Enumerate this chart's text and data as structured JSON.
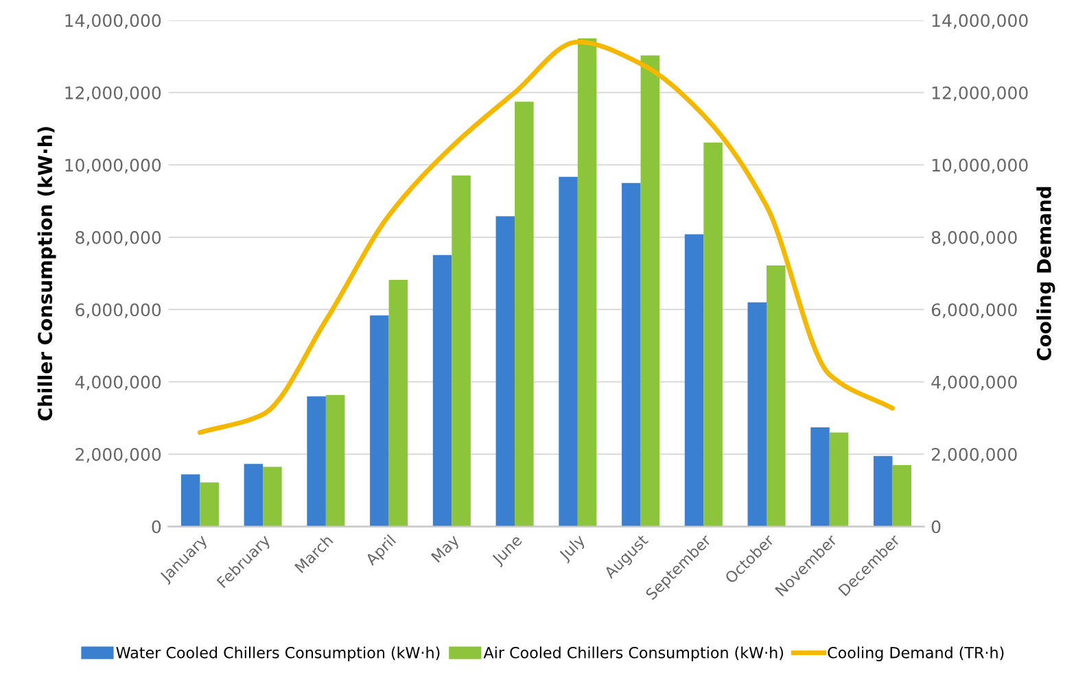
{
  "chart_data": {
    "type": "bar",
    "ylabel": "Chiller Consumption (kW·h)",
    "y2label": "Cooling Demand",
    "categories": [
      "January",
      "February",
      "March",
      "April",
      "May",
      "June",
      "July",
      "August",
      "September",
      "October",
      "November",
      "December"
    ],
    "series": [
      {
        "name": "Water Cooled Chillers Consumption (kW·h)",
        "color": "#3a7fd0",
        "values": [
          1440000,
          1730000,
          3600000,
          5840000,
          7510000,
          8580000,
          9670000,
          9500000,
          8080000,
          6200000,
          2740000,
          1950000
        ]
      },
      {
        "name": "Air Cooled Chillers Consumption (kW·h)",
        "color": "#8cc43c",
        "values": [
          1220000,
          1650000,
          3640000,
          6820000,
          9710000,
          11750000,
          13500000,
          13030000,
          10620000,
          7220000,
          2600000,
          1700000
        ]
      },
      {
        "name": "Cooling Demand (TR·h)",
        "type": "line",
        "axis": "y2",
        "color": "#f5b800",
        "values": [
          2600000,
          3100000,
          5700000,
          8600000,
          10500000,
          12000000,
          13400000,
          12800000,
          11370000,
          8860000,
          4200000,
          3270000
        ]
      }
    ],
    "ylim": [
      0,
      14000000
    ],
    "yticks": [
      {
        "value": 0,
        "label": "0"
      },
      {
        "value": 2000000,
        "label": "2,000,000"
      },
      {
        "value": 4000000,
        "label": "4,000,000"
      },
      {
        "value": 6000000,
        "label": "6,000,000"
      },
      {
        "value": 8000000,
        "label": "8,000,000"
      },
      {
        "value": 10000000,
        "label": "10,000,000"
      },
      {
        "value": 12000000,
        "label": "12,000,000"
      },
      {
        "value": 14000000,
        "label": "14,000,000"
      }
    ],
    "y2lim": [
      0,
      14000000
    ],
    "y2ticks": [
      {
        "value": 0,
        "label": "0"
      },
      {
        "value": 2000000,
        "label": "2,000,000"
      },
      {
        "value": 4000000,
        "label": "4,000,000"
      },
      {
        "value": 6000000,
        "label": "6,000,000"
      },
      {
        "value": 8000000,
        "label": "8,000,000"
      },
      {
        "value": 10000000,
        "label": "10,000,000"
      },
      {
        "value": 12000000,
        "label": "12,000,000"
      },
      {
        "value": 14000000,
        "label": "14,000,000"
      }
    ],
    "grid": "y",
    "legend": "bottom"
  }
}
